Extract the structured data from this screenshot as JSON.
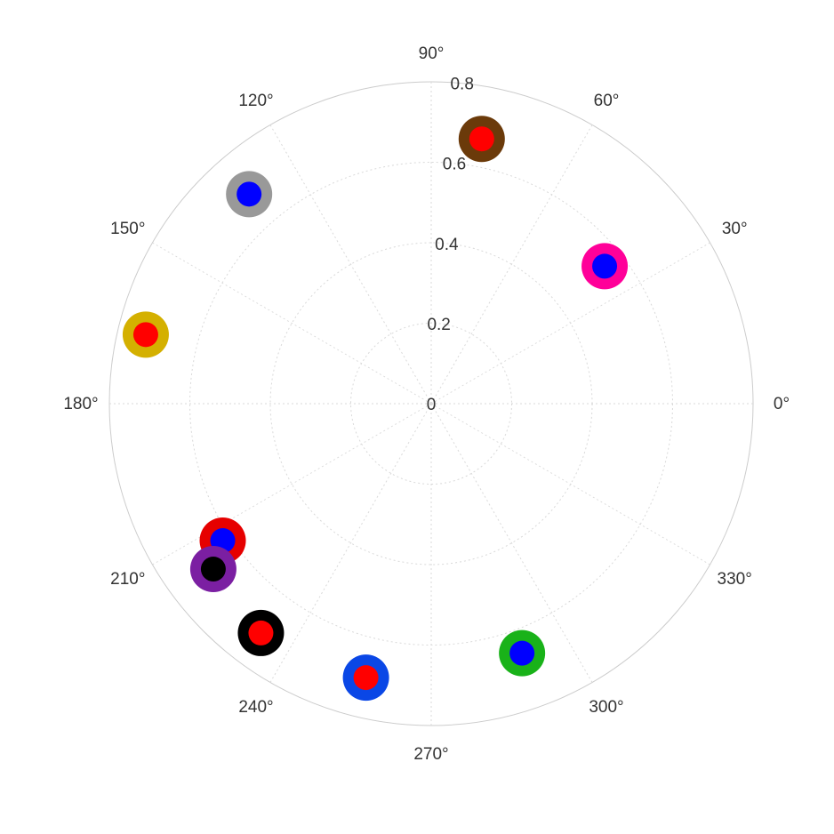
{
  "chart_data": {
    "type": "scatter",
    "projection": "polar",
    "angle_unit": "degrees",
    "theta_zero": "east",
    "theta_direction": "counterclockwise",
    "rlim": [
      0,
      0.8
    ],
    "r_ticks": [
      {
        "value": 0,
        "label": "0"
      },
      {
        "value": 0.2,
        "label": "0.2"
      },
      {
        "value": 0.4,
        "label": "0.4"
      },
      {
        "value": 0.6,
        "label": "0.6"
      },
      {
        "value": 0.8,
        "label": "0.8"
      }
    ],
    "theta_ticks": [
      {
        "value": 0,
        "label": "0°"
      },
      {
        "value": 30,
        "label": "30°"
      },
      {
        "value": 60,
        "label": "60°"
      },
      {
        "value": 90,
        "label": "90°"
      },
      {
        "value": 120,
        "label": "120°"
      },
      {
        "value": 150,
        "label": "150°"
      },
      {
        "value": 180,
        "label": "180°"
      },
      {
        "value": 210,
        "label": "210°"
      },
      {
        "value": 240,
        "label": "240°"
      },
      {
        "value": 270,
        "label": "270°"
      },
      {
        "value": 300,
        "label": "300°"
      },
      {
        "value": 330,
        "label": "330°"
      }
    ],
    "grid": true,
    "points": [
      {
        "theta": 79.2,
        "r": 0.67,
        "outer_color": "#6b3a0a",
        "inner_color": "#ff0000"
      },
      {
        "theta": 38.4,
        "r": 0.55,
        "outer_color": "#ff0099",
        "inner_color": "#0000ff"
      },
      {
        "theta": 131.0,
        "r": 0.69,
        "outer_color": "#999999",
        "inner_color": "#0000ff"
      },
      {
        "theta": 166.4,
        "r": 0.73,
        "outer_color": "#d4b000",
        "inner_color": "#ff0000"
      },
      {
        "theta": 213.3,
        "r": 0.62,
        "outer_color": "#e60000",
        "inner_color": "#0000ff"
      },
      {
        "theta": 217.2,
        "r": 0.68,
        "outer_color": "#7b1fa2",
        "inner_color": "#000000"
      },
      {
        "theta": 233.4,
        "r": 0.71,
        "outer_color": "#000000",
        "inner_color": "#ff0000"
      },
      {
        "theta": 256.6,
        "r": 0.7,
        "outer_color": "#0a47e6",
        "inner_color": "#ff0000"
      },
      {
        "theta": 290.0,
        "r": 0.66,
        "outer_color": "#19b219",
        "inner_color": "#0000ff"
      }
    ]
  }
}
